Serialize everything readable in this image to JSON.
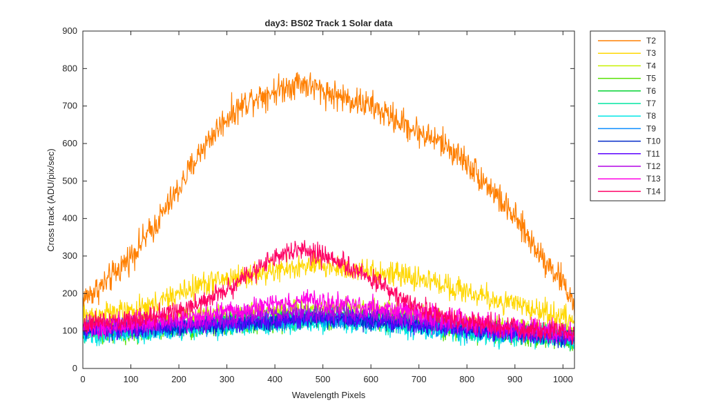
{
  "chart_data": {
    "type": "line",
    "title": "day3: BS02  Track 1 Solar data",
    "xlabel": "Wavelength Pixels",
    "ylabel": "Cross track (ADU/pix/sec)",
    "xlim": [
      0,
      1024
    ],
    "ylim": [
      0,
      900
    ],
    "xticks": [
      0,
      100,
      200,
      300,
      400,
      500,
      600,
      700,
      800,
      900,
      1000
    ],
    "yticks": [
      0,
      100,
      200,
      300,
      400,
      500,
      600,
      700,
      800,
      900
    ],
    "legend_position": "outside-top-right",
    "x": [
      0,
      50,
      100,
      150,
      200,
      250,
      300,
      350,
      400,
      450,
      500,
      550,
      600,
      650,
      700,
      750,
      800,
      850,
      900,
      950,
      1000,
      1024
    ],
    "series": [
      {
        "name": "T2",
        "color": "#ff7f00",
        "noise": 30,
        "values": [
          185,
          230,
          300,
          380,
          480,
          590,
          670,
          720,
          740,
          765,
          740,
          720,
          700,
          665,
          630,
          600,
          550,
          480,
          400,
          310,
          230,
          170
        ]
      },
      {
        "name": "T3",
        "color": "#ffd700",
        "noise": 25,
        "values": [
          140,
          145,
          150,
          170,
          200,
          225,
          240,
          250,
          260,
          270,
          275,
          265,
          255,
          250,
          240,
          225,
          205,
          185,
          170,
          155,
          135,
          125
        ]
      },
      {
        "name": "T4",
        "color": "#c8f000",
        "noise": 20,
        "values": [
          115,
          115,
          120,
          125,
          135,
          140,
          145,
          150,
          155,
          160,
          165,
          165,
          160,
          150,
          140,
          130,
          120,
          115,
          110,
          105,
          100,
          95
        ]
      },
      {
        "name": "T5",
        "color": "#55e000",
        "noise": 20,
        "values": [
          95,
          90,
          95,
          100,
          105,
          110,
          115,
          120,
          125,
          130,
          135,
          135,
          130,
          125,
          115,
          110,
          100,
          95,
          90,
          85,
          80,
          70
        ]
      },
      {
        "name": "T6",
        "color": "#00d232",
        "noise": 20,
        "values": [
          100,
          100,
          105,
          110,
          112,
          118,
          122,
          128,
          132,
          136,
          140,
          138,
          134,
          128,
          120,
          112,
          105,
          100,
          95,
          90,
          85,
          75
        ]
      },
      {
        "name": "T7",
        "color": "#00e6a0",
        "noise": 20,
        "values": [
          100,
          100,
          105,
          108,
          112,
          116,
          120,
          124,
          128,
          132,
          134,
          132,
          128,
          122,
          116,
          110,
          104,
          98,
          94,
          90,
          85,
          78
        ]
      },
      {
        "name": "T8",
        "color": "#00e6e6",
        "noise": 20,
        "values": [
          90,
          88,
          92,
          96,
          100,
          105,
          108,
          112,
          116,
          120,
          122,
          120,
          116,
          112,
          106,
          100,
          94,
          88,
          84,
          80,
          75,
          65
        ]
      },
      {
        "name": "T9",
        "color": "#0a8cff",
        "noise": 18,
        "values": [
          100,
          100,
          102,
          106,
          108,
          112,
          116,
          120,
          124,
          128,
          130,
          128,
          124,
          118,
          112,
          106,
          100,
          96,
          92,
          88,
          84,
          78
        ]
      },
      {
        "name": "T10",
        "color": "#0028c8",
        "noise": 18,
        "values": [
          105,
          104,
          106,
          108,
          110,
          114,
          118,
          122,
          126,
          130,
          132,
          130,
          126,
          120,
          114,
          108,
          102,
          98,
          94,
          90,
          86,
          80
        ]
      },
      {
        "name": "T11",
        "color": "#5a00ff",
        "noise": 18,
        "values": [
          105,
          105,
          108,
          110,
          113,
          117,
          121,
          125,
          129,
          133,
          135,
          133,
          129,
          123,
          117,
          111,
          105,
          100,
          96,
          92,
          88,
          82
        ]
      },
      {
        "name": "T12",
        "color": "#b400e6",
        "noise": 20,
        "values": [
          110,
          110,
          112,
          116,
          120,
          126,
          132,
          140,
          146,
          150,
          152,
          150,
          146,
          138,
          130,
          122,
          114,
          108,
          102,
          98,
          94,
          88
        ]
      },
      {
        "name": "T13",
        "color": "#ff00e6",
        "noise": 22,
        "values": [
          110,
          112,
          118,
          125,
          132,
          140,
          150,
          160,
          172,
          180,
          178,
          172,
          165,
          155,
          145,
          135,
          125,
          115,
          108,
          102,
          96,
          90
        ]
      },
      {
        "name": "T14",
        "color": "#ff0064",
        "noise": 22,
        "values": [
          120,
          125,
          130,
          140,
          155,
          175,
          210,
          255,
          295,
          315,
          300,
          275,
          240,
          200,
          165,
          140,
          125,
          115,
          108,
          102,
          96,
          92
        ]
      }
    ]
  }
}
